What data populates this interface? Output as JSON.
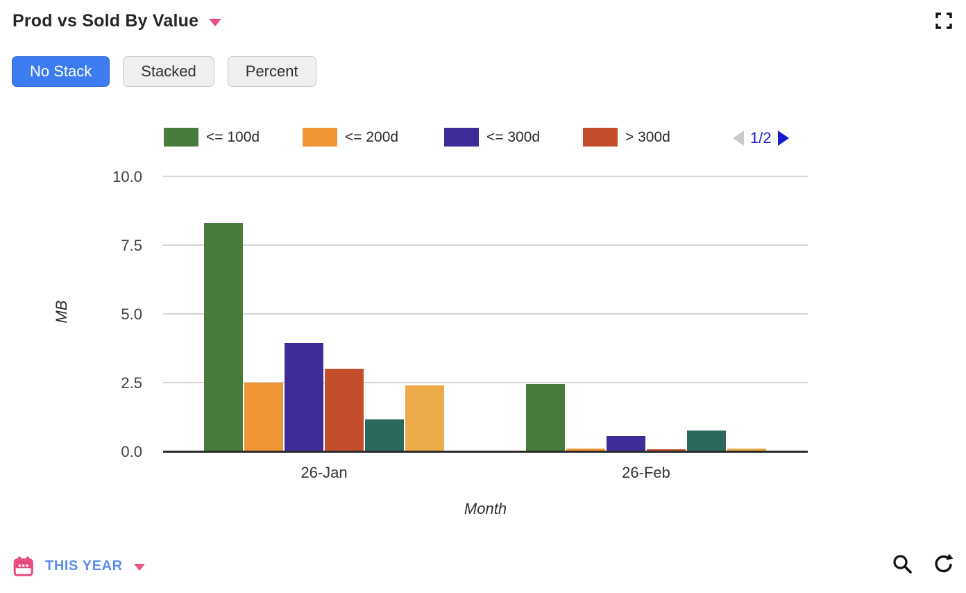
{
  "header": {
    "title": "Prod vs Sold By Value"
  },
  "toolbar": {
    "modes": [
      {
        "label": "No Stack",
        "active": true
      },
      {
        "label": "Stacked",
        "active": false
      },
      {
        "label": "Percent",
        "active": false
      }
    ]
  },
  "legend": {
    "page_label": "1/2"
  },
  "chart_data": {
    "type": "bar",
    "title": "Prod vs Sold By Value",
    "categories": [
      "26-Jan",
      "26-Feb"
    ],
    "series": [
      {
        "name": "<= 100d",
        "color": "#477c3c",
        "legend_visible": true,
        "values": [
          8.3,
          2.45
        ]
      },
      {
        "name": "<= 200d",
        "color": "#ef9535",
        "legend_visible": true,
        "values": [
          2.5,
          0.1
        ]
      },
      {
        "name": "<= 300d",
        "color": "#3f2b9a",
        "legend_visible": true,
        "values": [
          3.95,
          0.55
        ]
      },
      {
        "name": "> 300d",
        "color": "#c44e2c",
        "legend_visible": true,
        "values": [
          3.0,
          0.08
        ]
      },
      {
        "name": "",
        "color": "#2c685e",
        "legend_visible": false,
        "values": [
          1.15,
          0.75
        ]
      },
      {
        "name": "",
        "color": "#ecab49",
        "legend_visible": false,
        "values": [
          2.4,
          0.1
        ]
      }
    ],
    "xlabel": "Month",
    "ylabel": "MB",
    "ylim": [
      0,
      10
    ],
    "yticks": [
      "0.0",
      "2.5",
      "5.0",
      "7.5",
      "10.0"
    ],
    "grid": true,
    "legend_position": "top",
    "legend_page": "1/2"
  },
  "footer": {
    "date_range_label": "THIS YEAR"
  },
  "colors": {
    "accent_pink": "#ed4f82",
    "active_button_blue": "#3d7bf0",
    "legend_pagination_blue": "#1a1acd",
    "footer_link_blue": "#5b8def",
    "gridline_gray": "#d5d5d5",
    "axis_dark": "#2b2b2b"
  },
  "icons": {
    "header": [
      "caret-down-icon",
      "fullscreen-icon"
    ],
    "legend": [
      "prev-page-icon",
      "next-page-icon"
    ],
    "footer": [
      "calendar-icon",
      "caret-down-icon",
      "search-icon",
      "refresh-icon"
    ]
  }
}
